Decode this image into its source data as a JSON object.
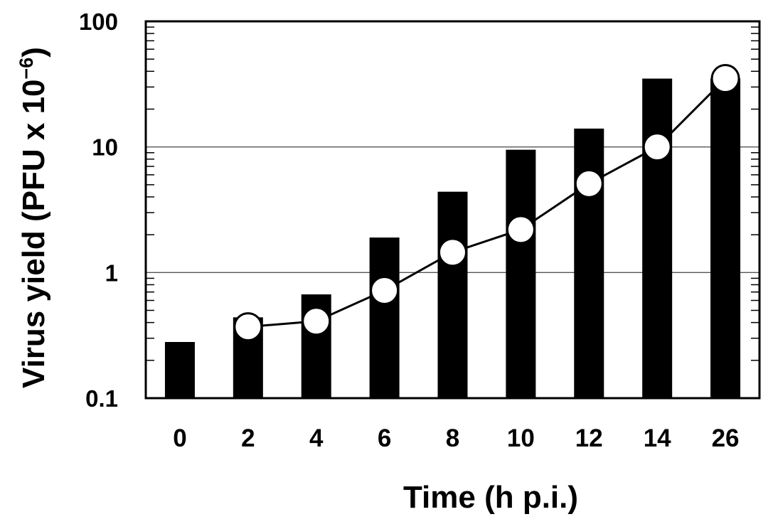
{
  "chart_data": {
    "type": "bar",
    "title": "",
    "xlabel": "Time (h p.i.)",
    "ylabel": "Virus yield (PFU x 10",
    "ylabel_exponent": "−6",
    "ylabel_suffix": ")",
    "yscale": "log",
    "ylim": [
      0.1,
      100
    ],
    "grid": "horizontal major gridlines at 1 and 10",
    "legend": "none",
    "categories": [
      "0",
      "2",
      "4",
      "6",
      "8",
      "10",
      "12",
      "14",
      "26"
    ],
    "y_ticks": [
      "100",
      "10",
      "1",
      "0.1"
    ],
    "y_tick_values": [
      100,
      10,
      1,
      0.1
    ],
    "series": [
      {
        "kind": "bar",
        "color": "#000000",
        "values": [
          0.28,
          0.44,
          0.67,
          1.9,
          4.4,
          9.5,
          14,
          35,
          35
        ]
      },
      {
        "kind": "line-with-markers",
        "color": "#000000",
        "marker_fill": "#ffffff",
        "values": [
          null,
          0.37,
          0.41,
          0.72,
          1.45,
          2.2,
          5.1,
          10,
          35
        ]
      }
    ]
  }
}
